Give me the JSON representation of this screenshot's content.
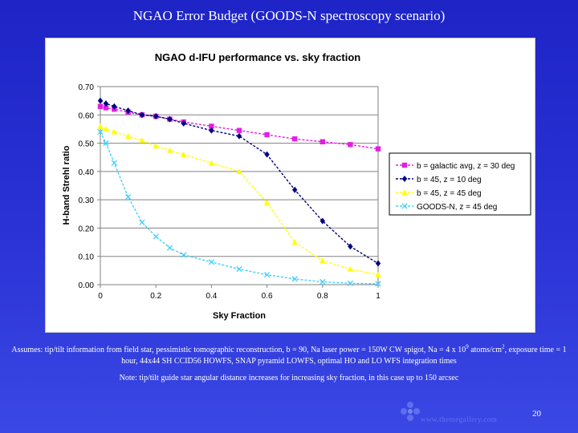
{
  "slide": {
    "title": "NGAO Error Budget (GOODS-N spectroscopy scenario)",
    "assumptions_part1": "Assumes: tip/tilt information from field star, pessimistic tomographic reconstruction, b = 90, Na laser power = 150W CW spigot, Na = 4 x 10",
    "assumptions_exponent": "9",
    "assumptions_part2": "atoms/cm",
    "assumptions_cm_exponent": "2",
    "assumptions_part3": ", exposure time = 1 hour, 44x44 SH CCID56 HOWFS, SNAP pyramid LOWFS, optimal HO and LO WFS integration times",
    "note": "Note: tip/tilt guide star angular distance increases for increasing sky fraction, in this case up to 150 arcsec",
    "page_number": "20",
    "logo_text": "www.themegallery.com"
  },
  "chart_data": {
    "type": "line",
    "title": "NGAO d-IFU performance vs. sky fraction",
    "xlabel": "Sky Fraction",
    "ylabel": "H-band Strehl ratio",
    "xlim": [
      0,
      1
    ],
    "ylim": [
      0,
      0.7
    ],
    "x_ticks": [
      "0",
      "0.2",
      "0.4",
      "0.6",
      "0.8",
      "1"
    ],
    "x_tick_values": [
      0,
      0.2,
      0.4,
      0.6,
      0.8,
      1.0
    ],
    "y_ticks": [
      "0.00",
      "0.10",
      "0.20",
      "0.30",
      "0.40",
      "0.50",
      "0.60",
      "0.70"
    ],
    "y_tick_values": [
      0,
      0.1,
      0.2,
      0.3,
      0.4,
      0.5,
      0.6,
      0.7
    ],
    "grid": "horizontal",
    "legend_position": "right",
    "series": [
      {
        "name": "b = galactic avg, z = 30 deg",
        "color": "#e020e0",
        "marker": "square",
        "x": [
          0,
          0.02,
          0.05,
          0.1,
          0.15,
          0.2,
          0.25,
          0.3,
          0.4,
          0.5,
          0.6,
          0.7,
          0.8,
          0.9,
          1.0
        ],
        "y": [
          0.63,
          0.625,
          0.62,
          0.61,
          0.6,
          0.595,
          0.585,
          0.575,
          0.56,
          0.545,
          0.53,
          0.515,
          0.505,
          0.495,
          0.48
        ]
      },
      {
        "name": "b = 45, z = 10 deg",
        "color": "#000080",
        "marker": "diamond",
        "x": [
          0,
          0.02,
          0.05,
          0.1,
          0.15,
          0.2,
          0.25,
          0.3,
          0.4,
          0.5,
          0.6,
          0.7,
          0.8,
          0.9,
          1.0
        ],
        "y": [
          0.65,
          0.64,
          0.63,
          0.615,
          0.6,
          0.595,
          0.585,
          0.57,
          0.545,
          0.525,
          0.46,
          0.335,
          0.225,
          0.135,
          0.075
        ]
      },
      {
        "name": "b = 45, z = 45 deg",
        "color": "#ffff00",
        "marker": "triangle",
        "x": [
          0,
          0.02,
          0.05,
          0.1,
          0.15,
          0.2,
          0.25,
          0.3,
          0.4,
          0.5,
          0.6,
          0.7,
          0.8,
          0.9,
          1.0
        ],
        "y": [
          0.56,
          0.55,
          0.54,
          0.525,
          0.51,
          0.49,
          0.475,
          0.46,
          0.43,
          0.4,
          0.29,
          0.15,
          0.085,
          0.055,
          0.035
        ]
      },
      {
        "name": "GOODS-N, z = 45 deg",
        "color": "#40d0ff",
        "marker": "x",
        "x": [
          0,
          0.02,
          0.05,
          0.1,
          0.15,
          0.2,
          0.25,
          0.3,
          0.4,
          0.5,
          0.6,
          0.7,
          0.8,
          0.9,
          1.0
        ],
        "y": [
          0.54,
          0.5,
          0.43,
          0.31,
          0.22,
          0.17,
          0.13,
          0.105,
          0.08,
          0.055,
          0.035,
          0.02,
          0.01,
          0.005,
          0.003
        ]
      }
    ]
  }
}
